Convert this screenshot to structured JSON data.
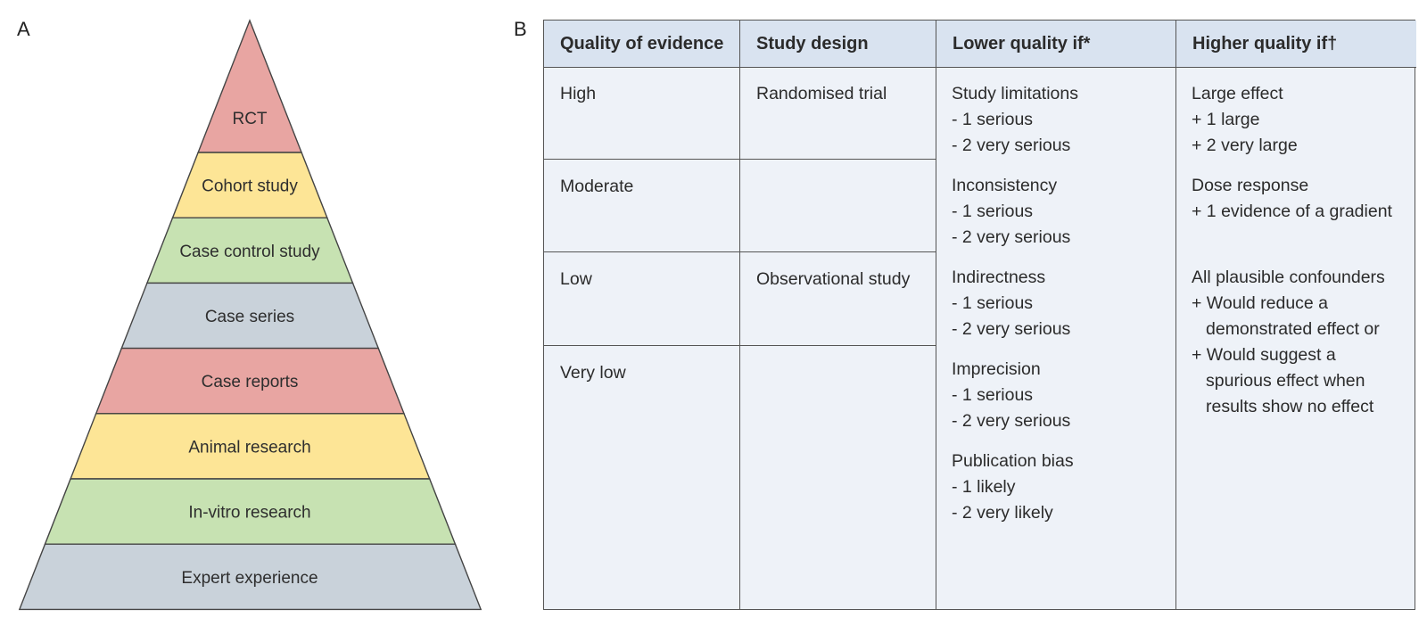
{
  "panels": {
    "a_label": "A",
    "b_label": "B"
  },
  "pyramid": {
    "levels": [
      {
        "label": "RCT",
        "color": "#e8a5a2"
      },
      {
        "label": "Cohort study",
        "color": "#fde596"
      },
      {
        "label": "Case control study",
        "color": "#c7e2b2"
      },
      {
        "label": "Case series",
        "color": "#c9d2da"
      },
      {
        "label": "Case reports",
        "color": "#e8a5a2"
      },
      {
        "label": "Animal research",
        "color": "#fde596"
      },
      {
        "label": "In-vitro research",
        "color": "#c7e2b2"
      },
      {
        "label": "Expert experience",
        "color": "#c9d2da"
      }
    ],
    "apex_color": "#e8a5a2"
  },
  "table": {
    "headers": [
      "Quality of evidence",
      "Study design",
      "Lower quality if*",
      "Higher quality if†"
    ],
    "quality_levels": [
      "High",
      "Moderate",
      "Low",
      "Very low"
    ],
    "study_designs": {
      "randomised": "Randomised trial",
      "observational": "Observational study"
    },
    "lower_quality": [
      {
        "title": "Study limitations",
        "items": [
          "- 1 serious",
          "- 2 very serious"
        ]
      },
      {
        "title": "Inconsistency",
        "items": [
          "- 1 serious",
          "- 2 very serious"
        ]
      },
      {
        "title": "Indirectness",
        "items": [
          "- 1 serious",
          "- 2 very serious"
        ]
      },
      {
        "title": "Imprecision",
        "items": [
          "- 1 serious",
          "- 2 very serious"
        ]
      },
      {
        "title": "Publication bias",
        "items": [
          "- 1 likely",
          "- 2 very likely"
        ]
      }
    ],
    "higher_quality": {
      "large_effect": {
        "title": "Large effect",
        "items": [
          "+ 1 large",
          "+ 2 very large"
        ]
      },
      "dose_response": {
        "title": "Dose response",
        "items": [
          "+ 1 evidence of a gradient"
        ]
      },
      "confounders": {
        "title": "All plausible confounders",
        "line1": "+ Would reduce a",
        "line2": "demonstrated effect or",
        "line3": "+ Would suggest a",
        "line4": "spurious effect when",
        "line5": "results show no effect"
      }
    }
  }
}
